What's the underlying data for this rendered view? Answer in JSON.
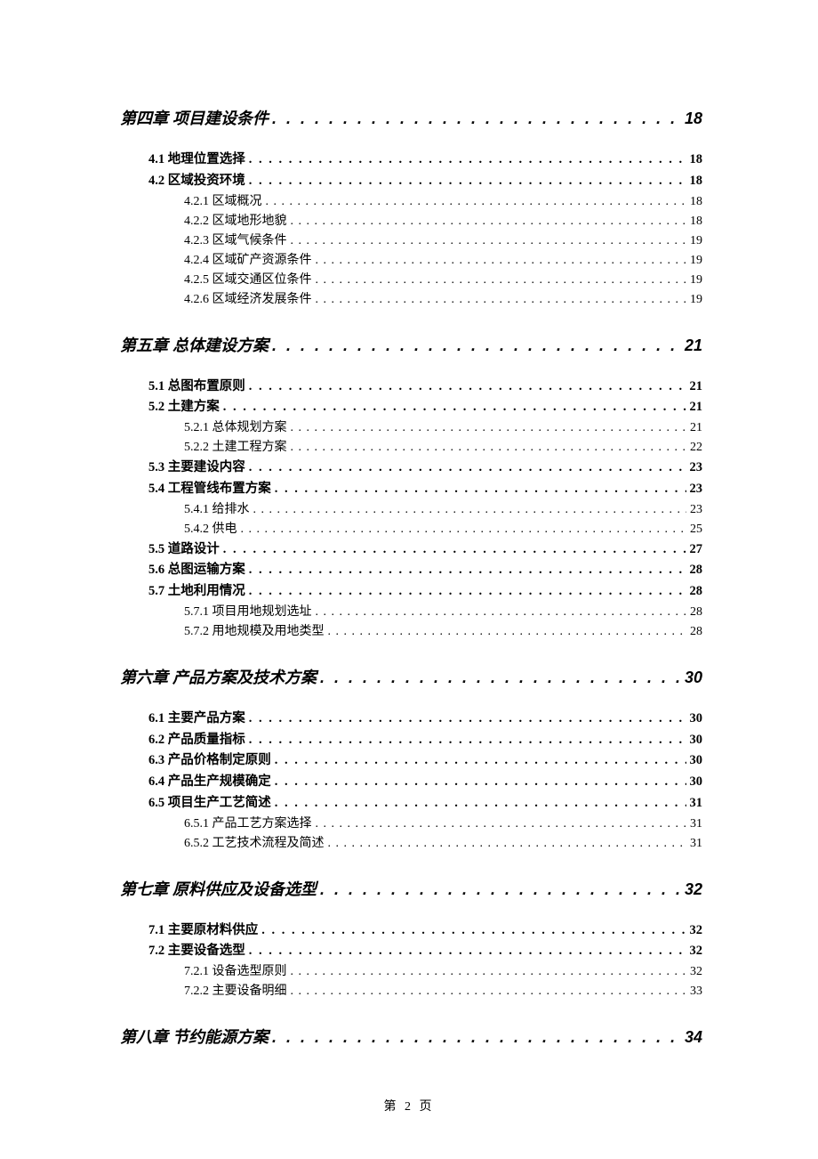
{
  "page_label": "第 2 页",
  "text_color": "#000000",
  "background_color": "#ffffff",
  "chapter_title_fontsize": 18,
  "section_title_fontsize": 14.5,
  "subsection_title_fontsize": 14,
  "toc": [
    {
      "level": "chapter",
      "title": "第四章 项目建设条件",
      "page": "18"
    },
    {
      "level": "section",
      "title": "4.1 地理位置选择",
      "page": "18",
      "first_in_chapter": true
    },
    {
      "level": "section",
      "title": "4.2 区域投资环境",
      "page": "18"
    },
    {
      "level": "subsection",
      "title": "4.2.1 区域概况",
      "page": "18"
    },
    {
      "level": "subsection",
      "title": "4.2.2 区域地形地貌",
      "page": "18"
    },
    {
      "level": "subsection",
      "title": "4.2.3 区域气候条件",
      "page": "19"
    },
    {
      "level": "subsection",
      "title": "4.2.4 区域矿产资源条件",
      "page": "19"
    },
    {
      "level": "subsection",
      "title": "4.2.5 区域交通区位条件",
      "page": "19"
    },
    {
      "level": "subsection",
      "title": "4.2.6 区域经济发展条件",
      "page": "19"
    },
    {
      "level": "chapter",
      "title": "第五章 总体建设方案",
      "page": "21"
    },
    {
      "level": "section",
      "title": "5.1 总图布置原则",
      "page": "21",
      "first_in_chapter": true
    },
    {
      "level": "section",
      "title": "5.2 土建方案",
      "page": "21"
    },
    {
      "level": "subsection",
      "title": "5.2.1 总体规划方案",
      "page": "21"
    },
    {
      "level": "subsection",
      "title": "5.2.2 土建工程方案",
      "page": "22"
    },
    {
      "level": "section",
      "title": "5.3 主要建设内容",
      "page": "23"
    },
    {
      "level": "section",
      "title": "5.4 工程管线布置方案",
      "page": "23"
    },
    {
      "level": "subsection",
      "title": "5.4.1 给排水",
      "page": "23"
    },
    {
      "level": "subsection",
      "title": "5.4.2 供电",
      "page": "25"
    },
    {
      "level": "section",
      "title": "5.5 道路设计",
      "page": "27"
    },
    {
      "level": "section",
      "title": "5.6 总图运输方案",
      "page": "28"
    },
    {
      "level": "section",
      "title": "5.7 土地利用情况",
      "page": "28"
    },
    {
      "level": "subsection",
      "title": "5.7.1 项目用地规划选址",
      "page": "28"
    },
    {
      "level": "subsection",
      "title": "5.7.2 用地规模及用地类型",
      "page": "28"
    },
    {
      "level": "chapter",
      "title": "第六章 产品方案及技术方案",
      "page": "30"
    },
    {
      "level": "section",
      "title": "6.1 主要产品方案",
      "page": "30",
      "first_in_chapter": true
    },
    {
      "level": "section",
      "title": "6.2 产品质量指标",
      "page": "30"
    },
    {
      "level": "section",
      "title": "6.3 产品价格制定原则",
      "page": "30"
    },
    {
      "level": "section",
      "title": "6.4 产品生产规模确定",
      "page": "30"
    },
    {
      "level": "section",
      "title": "6.5 项目生产工艺简述",
      "page": "31"
    },
    {
      "level": "subsection",
      "title": "6.5.1 产品工艺方案选择",
      "page": "31"
    },
    {
      "level": "subsection",
      "title": "6.5.2 工艺技术流程及简述",
      "page": "31"
    },
    {
      "level": "chapter",
      "title": "第七章 原料供应及设备选型",
      "page": "32"
    },
    {
      "level": "section",
      "title": "7.1 主要原材料供应",
      "page": "32",
      "first_in_chapter": true
    },
    {
      "level": "section",
      "title": "7.2 主要设备选型",
      "page": "32"
    },
    {
      "level": "subsection",
      "title": "7.2.1 设备选型原则",
      "page": "32"
    },
    {
      "level": "subsection",
      "title": "7.2.2 主要设备明细",
      "page": "33"
    },
    {
      "level": "chapter",
      "title": "第八章 节约能源方案",
      "page": "34"
    }
  ]
}
